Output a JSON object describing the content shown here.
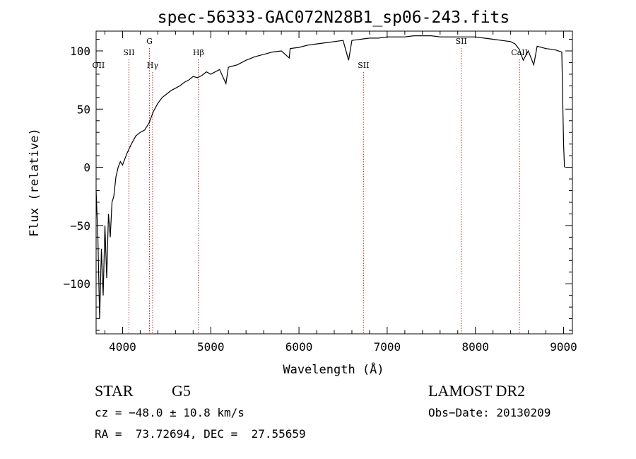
{
  "chart_data": {
    "type": "line",
    "title": "spec-56333-GAC072N28B1_sp06-243.fits",
    "xlabel": "Wavelength (Å)",
    "ylabel": "Flux (relative)",
    "xlim": [
      3700,
      9100
    ],
    "ylim": [
      -143,
      117
    ],
    "xticks": [
      4000,
      5000,
      6000,
      7000,
      8000,
      9000
    ],
    "xtick_labels": [
      "4000",
      "5000",
      "6000",
      "7000",
      "8000",
      "9000"
    ],
    "yticks": [
      -100,
      -50,
      0,
      50,
      100
    ],
    "ytick_labels": [
      "−100",
      "−50",
      "0",
      "50",
      "100"
    ],
    "grid": false,
    "series": [
      {
        "x": [
          3700,
          3720,
          3740,
          3760,
          3780,
          3800,
          3820,
          3840,
          3860,
          3880,
          3900,
          3925,
          3950,
          3975,
          4000,
          4050,
          4100,
          4150,
          4200,
          4250,
          4300,
          4350,
          4400,
          4450,
          4500,
          4550,
          4600,
          4650,
          4700,
          4750,
          4800,
          4850,
          4900,
          4950,
          5000,
          5100,
          5172,
          5200,
          5300,
          5400,
          5500,
          5600,
          5700,
          5800,
          5890,
          5900,
          6000,
          6100,
          6200,
          6300,
          6400,
          6500,
          6563,
          6600,
          6700,
          6800,
          6900,
          7000,
          7100,
          7200,
          7300,
          7400,
          7500,
          7600,
          7700,
          7800,
          7900,
          8000,
          8100,
          8200,
          8300,
          8400,
          8450,
          8500,
          8542,
          8600,
          8662,
          8700,
          8800,
          8900,
          8980,
          9000,
          9010
        ],
        "y": [
          -20,
          -60,
          -130,
          -70,
          -110,
          -50,
          -95,
          -40,
          -60,
          -30,
          -25,
          -8,
          0,
          5,
          2,
          12,
          20,
          27,
          30,
          32,
          38,
          48,
          55,
          60,
          63,
          66,
          68,
          70,
          73,
          75,
          78,
          77,
          79,
          82,
          80,
          84,
          72,
          86,
          88,
          92,
          95,
          97,
          99,
          100,
          94,
          102,
          103,
          105,
          106,
          107,
          108,
          109,
          92,
          109,
          110,
          111,
          111,
          112,
          112,
          112,
          113,
          113,
          113,
          112,
          112,
          112,
          112,
          112,
          111,
          110,
          109,
          108,
          106,
          101,
          92,
          100,
          88,
          104,
          102,
          101,
          99,
          20,
          0
        ]
      }
    ],
    "lines": [
      {
        "name": "OII",
        "wavelength": 3727
      },
      {
        "name": "SII",
        "wavelength": 4072
      },
      {
        "name": "Hγ",
        "wavelength": 4340
      },
      {
        "name": "G",
        "wavelength": 4305
      },
      {
        "name": "Hβ",
        "wavelength": 4861
      },
      {
        "name": "SII",
        "wavelength": 6731
      },
      {
        "name": "SII",
        "wavelength": 7840
      },
      {
        "name": "CaII",
        "wavelength": 8500
      }
    ]
  },
  "info": {
    "class": "STAR",
    "subclass": "G5",
    "survey": "LAMOST DR2",
    "cz": "cz = −48.0 ± 10.8 km/s",
    "obs_date": "Obs−Date: 20130209",
    "coords": "RA =  73.72694, DEC =  27.55659"
  },
  "colors": {
    "spectrum": "#000000",
    "line_markers": "#b03030",
    "axes": "#000000"
  }
}
